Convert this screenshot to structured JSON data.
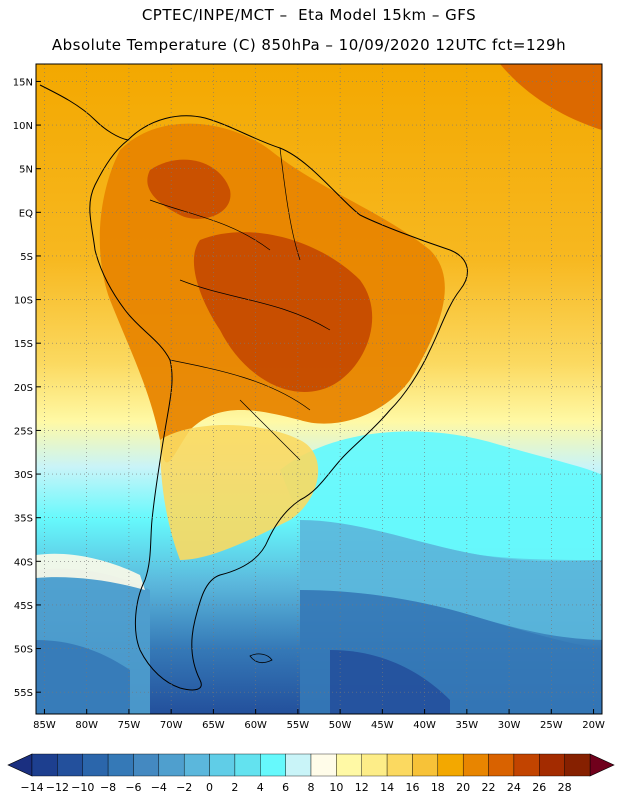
{
  "header": {
    "title_line1": "CPTEC/INPE/MCT –  Eta Model 15km – GFS",
    "title_line2": "Absolute Temperature (C) 850hPa – 10/09/2020 12UTC fct=129h"
  },
  "map": {
    "lat_labels": [
      "15N",
      "10N",
      "5N",
      "EQ",
      "5S",
      "10S",
      "15S",
      "20S",
      "25S",
      "30S",
      "35S",
      "40S",
      "45S",
      "50S",
      "55S"
    ],
    "lon_labels": [
      "85W",
      "80W",
      "75W",
      "70W",
      "65W",
      "60W",
      "55W",
      "50W",
      "45W",
      "40W",
      "35W",
      "30W",
      "25W",
      "20W"
    ],
    "lat_values": [
      15,
      10,
      5,
      0,
      -5,
      -10,
      -15,
      -20,
      -25,
      -30,
      -35,
      -40,
      -45,
      -50,
      -55
    ],
    "lon_values": [
      -85,
      -80,
      -75,
      -70,
      -65,
      -60,
      -55,
      -50,
      -45,
      -40,
      -35,
      -30,
      -25,
      -20
    ],
    "extent": {
      "west": -86,
      "east": -19,
      "north": 17,
      "south": -57.5
    }
  },
  "colorbar": {
    "labels": [
      "−14",
      "−12",
      "−10",
      "−8",
      "−6",
      "−4",
      "−2",
      "0",
      "2",
      "4",
      "6",
      "8",
      "10",
      "12",
      "14",
      "16",
      "18",
      "20",
      "22",
      "24",
      "26",
      "28"
    ],
    "colors": [
      "#1d3f8f",
      "#23509c",
      "#2b66ab",
      "#3579b7",
      "#4489c1",
      "#4f9fce",
      "#5bb7dc",
      "#60cde7",
      "#63e2ef",
      "#66f9fc",
      "#c9f4f8",
      "#fffce9",
      "#fff9a5",
      "#fded88",
      "#fbd960",
      "#f7c238",
      "#f3a800",
      "#e88500",
      "#d96200",
      "#c24400",
      "#a32b00",
      "#862000"
    ]
  }
}
